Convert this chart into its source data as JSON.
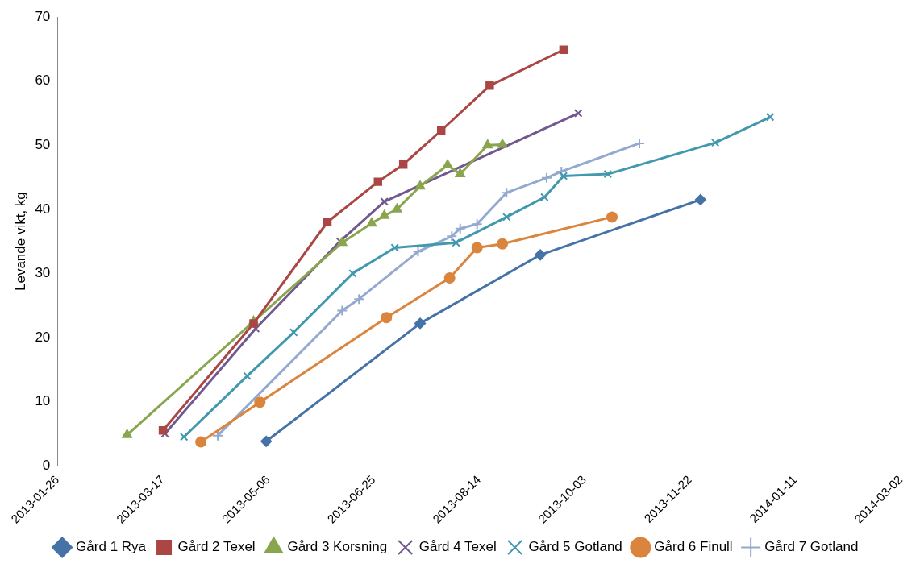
{
  "chart_data": {
    "type": "line",
    "ylabel": "Levande vikt, kg",
    "xlim": [
      "2013-01-26",
      "2014-03-02"
    ],
    "xticks": [
      "2013-01-26",
      "2013-03-17",
      "2013-05-06",
      "2013-06-25",
      "2013-08-14",
      "2013-10-03",
      "2013-11-22",
      "2014-01-11",
      "2014-03-02"
    ],
    "ylim": [
      0,
      70
    ],
    "yticks": [
      0,
      10,
      20,
      30,
      40,
      50,
      60,
      70
    ],
    "grid": false,
    "legend": "bottom",
    "series": [
      {
        "name": "Gård 1 Rya",
        "color": "#4572a7",
        "marker": "diamond",
        "x": [
          "2013-05-05",
          "2013-07-17",
          "2013-09-12",
          "2013-11-27"
        ],
        "values": [
          3.8,
          22.2,
          32.9,
          41.5
        ]
      },
      {
        "name": "Gård 2 Texel",
        "color": "#aa4643",
        "marker": "square",
        "x": [
          "2013-03-17",
          "2013-04-29",
          "2013-06-03",
          "2013-06-27",
          "2013-07-09",
          "2013-07-27",
          "2013-08-19",
          "2013-09-23"
        ],
        "values": [
          5.5,
          22.2,
          38,
          44.3,
          47,
          52.3,
          59.3,
          64.9
        ]
      },
      {
        "name": "Gård 3 Korsning",
        "color": "#89a54e",
        "marker": "triangle",
        "x": [
          "2013-02-28",
          "2013-04-29",
          "2013-06-10",
          "2013-06-24",
          "2013-06-30",
          "2013-07-06",
          "2013-07-17",
          "2013-07-30",
          "2013-08-05",
          "2013-08-18",
          "2013-08-25"
        ],
        "values": [
          4.8,
          22.5,
          34.8,
          37.8,
          39,
          40,
          43.6,
          46.9,
          45.5,
          50,
          50.1
        ]
      },
      {
        "name": "Gård 4 Texel",
        "color": "#71588f",
        "marker": "cross",
        "x": [
          "2013-03-18",
          "2013-04-30",
          "2013-06-09",
          "2013-06-30",
          "2013-09-30"
        ],
        "values": [
          5,
          21.4,
          35,
          41.2,
          55
        ]
      },
      {
        "name": "Gård 5 Gotland",
        "color": "#4198af",
        "marker": "cross",
        "x": [
          "2013-03-27",
          "2013-04-26",
          "2013-05-18",
          "2013-06-15",
          "2013-07-05",
          "2013-08-03",
          "2013-08-27",
          "2013-09-14",
          "2013-09-23",
          "2013-10-14",
          "2013-12-04",
          "2013-12-30"
        ],
        "values": [
          4.5,
          14,
          20.8,
          30,
          34,
          34.8,
          38.8,
          41.9,
          45.2,
          45.5,
          50.4,
          54.4
        ]
      },
      {
        "name": "Gård 6 Finull",
        "color": "#db843d",
        "marker": "circle",
        "x": [
          "2013-04-04",
          "2013-05-02",
          "2013-07-01",
          "2013-07-31",
          "2013-08-13",
          "2013-08-25",
          "2013-10-16"
        ],
        "values": [
          3.7,
          9.9,
          23.1,
          29.3,
          34,
          34.6,
          38.8
        ]
      },
      {
        "name": "Gård 7 Gotland",
        "color": "#93a9cf",
        "marker": "plus",
        "x": [
          "2013-04-12",
          "2013-06-10",
          "2013-06-18",
          "2013-07-16",
          "2013-08-01",
          "2013-08-05",
          "2013-08-13",
          "2013-08-27",
          "2013-09-15",
          "2013-09-22",
          "2013-10-29"
        ],
        "values": [
          4.7,
          24.2,
          26,
          33.4,
          35.8,
          37,
          37.7,
          42.6,
          44.9,
          45.9,
          50.3
        ]
      }
    ]
  }
}
